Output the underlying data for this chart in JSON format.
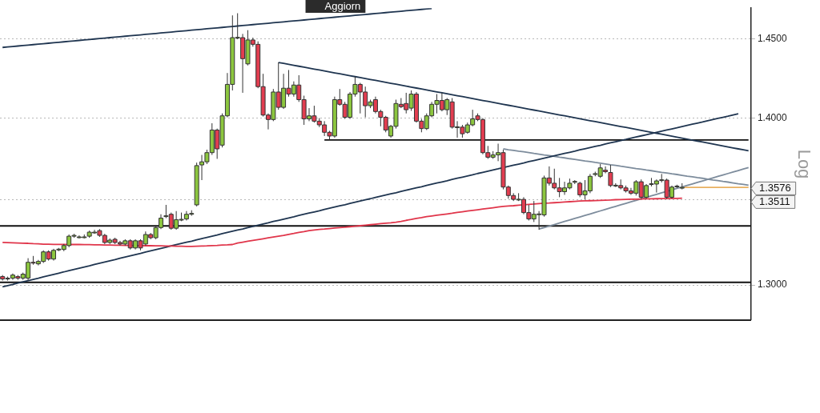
{
  "chart_data": {
    "type": "candlestick",
    "ylabel": "Log",
    "log": true,
    "grid": "y",
    "tick_labels": "y",
    "categories": [
      null,
      null,
      null,
      null,
      null,
      null,
      null,
      null,
      null,
      null,
      null,
      null,
      null,
      null,
      null,
      null,
      null,
      null,
      null,
      null,
      null,
      null,
      null,
      null,
      null,
      null,
      null,
      null,
      null,
      null,
      null,
      null,
      null,
      null,
      null,
      null,
      null,
      null,
      null,
      null,
      null,
      null,
      null,
      null,
      null,
      null,
      null,
      null,
      null,
      null,
      null,
      null,
      null,
      null,
      null,
      null,
      null,
      null,
      null,
      null,
      null,
      null,
      null,
      null,
      null,
      null,
      null,
      null,
      null,
      null,
      null,
      null,
      null,
      null,
      null,
      null,
      null,
      null,
      null,
      null,
      null,
      null,
      null,
      null,
      null,
      null,
      null,
      null,
      null,
      null,
      null,
      null,
      null,
      null,
      null,
      null,
      null,
      null,
      null,
      null,
      null,
      null,
      null,
      null,
      null,
      null,
      null,
      null,
      null,
      null,
      null,
      null,
      null,
      null,
      null,
      null,
      null,
      null,
      null,
      null,
      null,
      null,
      null,
      null,
      null,
      null,
      null,
      null,
      null,
      null,
      null,
      null,
      null,
      null,
      null,
      null,
      null,
      null,
      null,
      null,
      null,
      null,
      null,
      null,
      null,
      null,
      null
    ],
    "ylim": [
      1.28,
      1.47
    ],
    "yticks": [
      {
        "value": 1.3,
        "label": "1.3000"
      },
      {
        "value": 1.35,
        "label": null
      },
      {
        "value": 1.4,
        "label": "1.4000"
      },
      {
        "value": 1.45,
        "label": "1.4500"
      }
    ],
    "ohlc": [
      [
        1.3049,
        1.3058,
        1.3026,
        1.3035
      ],
      [
        1.3035,
        1.3049,
        1.3026,
        1.304
      ],
      [
        1.304,
        1.3067,
        1.303,
        1.3058
      ],
      [
        1.3049,
        1.3058,
        1.303,
        1.304
      ],
      [
        1.304,
        1.3072,
        1.303,
        1.3063
      ],
      [
        1.304,
        1.3156,
        1.3026,
        1.3132
      ],
      [
        1.3132,
        1.3169,
        1.3118,
        1.3128
      ],
      [
        1.3123,
        1.3146,
        1.3114,
        1.3137
      ],
      [
        1.3137,
        1.3202,
        1.3128,
        1.3193
      ],
      [
        1.3193,
        1.3202,
        1.3142,
        1.3151
      ],
      [
        1.3151,
        1.3211,
        1.3142,
        1.3202
      ],
      [
        1.3207,
        1.3216,
        1.3197,
        1.3209
      ],
      [
        1.3207,
        1.3239,
        1.3197,
        1.323
      ],
      [
        1.323,
        1.3295,
        1.322,
        1.3285
      ],
      [
        1.3285,
        1.3299,
        1.3276,
        1.329
      ],
      [
        1.3281,
        1.329,
        1.3272,
        1.3281
      ],
      [
        1.3281,
        1.3295,
        1.3272,
        1.3281
      ],
      [
        1.3285,
        1.3318,
        1.3276,
        1.3309
      ],
      [
        1.3309,
        1.3323,
        1.3299,
        1.3309
      ],
      [
        1.3318,
        1.3327,
        1.3281,
        1.329
      ],
      [
        1.329,
        1.3299,
        1.3239,
        1.3248
      ],
      [
        1.3248,
        1.3272,
        1.3239,
        1.3262
      ],
      [
        1.3267,
        1.3276,
        1.3239,
        1.3248
      ],
      [
        1.3248,
        1.3258,
        1.323,
        1.3239
      ],
      [
        1.3239,
        1.3267,
        1.323,
        1.3258
      ],
      [
        1.3258,
        1.3267,
        1.3207,
        1.3216
      ],
      [
        1.3216,
        1.3267,
        1.3207,
        1.3258
      ],
      [
        1.3258,
        1.3267,
        1.3202,
        1.3216
      ],
      [
        1.3239,
        1.3313,
        1.323,
        1.3295
      ],
      [
        1.3295,
        1.3304,
        1.3267,
        1.3276
      ],
      [
        1.3276,
        1.335,
        1.3267,
        1.3336
      ],
      [
        1.3336,
        1.3415,
        1.3327,
        1.3392
      ],
      [
        1.3401,
        1.3471,
        1.3392,
        1.3406
      ],
      [
        1.3415,
        1.3425,
        1.3323,
        1.3332
      ],
      [
        1.3332,
        1.3434,
        1.3323,
        1.3383
      ],
      [
        1.3383,
        1.3425,
        1.3374,
        1.3385
      ],
      [
        1.3387,
        1.3434,
        1.3378,
        1.3415
      ],
      [
        1.3415,
        1.3439,
        1.3406,
        1.342
      ],
      [
        1.3471,
        1.3726,
        1.3462,
        1.3708
      ],
      [
        1.3712,
        1.3773,
        1.362,
        1.3731
      ],
      [
        1.3731,
        1.3805,
        1.3717,
        1.3787
      ],
      [
        1.3787,
        1.3968,
        1.3773,
        1.3926
      ],
      [
        1.3926,
        1.3935,
        1.3749,
        1.381
      ],
      [
        1.3833,
        1.4029,
        1.3819,
        1.4014
      ],
      [
        1.4014,
        1.4283,
        1.4005,
        1.4211
      ],
      [
        1.4211,
        1.4653,
        1.4173,
        1.4509
      ],
      [
        1.4509,
        1.4667,
        1.4499,
        1.4511
      ],
      [
        1.4509,
        1.4533,
        1.4158,
        1.4374
      ],
      [
        1.4341,
        1.4557,
        1.4331,
        1.4494
      ],
      [
        1.4494,
        1.4509,
        1.4451,
        1.4466
      ],
      [
        1.4466,
        1.4485,
        1.4187,
        1.4197
      ],
      [
        1.4197,
        1.4278,
        1.401,
        1.4019
      ],
      [
        1.4019,
        1.4029,
        1.393,
        1.3991
      ],
      [
        1.3991,
        1.4182,
        1.3981,
        1.4163
      ],
      [
        1.4163,
        1.435,
        1.4052,
        1.4067
      ],
      [
        1.4067,
        1.4278,
        1.4057,
        1.4187
      ],
      [
        1.4187,
        1.4302,
        1.4134,
        1.415
      ],
      [
        1.415,
        1.423,
        1.4134,
        1.4207
      ],
      [
        1.4207,
        1.4269,
        1.4101,
        1.4115
      ],
      [
        1.4115,
        1.414,
        1.3958,
        1.3995
      ],
      [
        1.3995,
        1.4062,
        1.3981,
        1.4014
      ],
      [
        1.4014,
        1.4077,
        1.3972,
        1.3981
      ],
      [
        1.3981,
        1.4,
        1.3944,
        1.3958
      ],
      [
        1.3958,
        1.3981,
        1.3889,
        1.3912
      ],
      [
        1.3912,
        1.3921,
        1.3865,
        1.3889
      ],
      [
        1.3889,
        1.4134,
        1.3879,
        1.4115
      ],
      [
        1.4115,
        1.4182,
        1.4077,
        1.4086
      ],
      [
        1.4086,
        1.4101,
        1.3995,
        1.4005
      ],
      [
        1.4005,
        1.4163,
        1.3995,
        1.415
      ],
      [
        1.415,
        1.426,
        1.4134,
        1.4211
      ],
      [
        1.4211,
        1.4221,
        1.4029,
        1.4163
      ],
      [
        1.4163,
        1.4197,
        1.4005,
        1.4077
      ],
      [
        1.4077,
        1.4115,
        1.4062,
        1.4101
      ],
      [
        1.4115,
        1.4134,
        1.4029,
        1.4041
      ],
      [
        1.4041,
        1.4052,
        1.3949,
        1.4005
      ],
      [
        1.4005,
        1.4014,
        1.3912,
        1.3926
      ],
      [
        1.3889,
        1.3958,
        1.3879,
        1.3949
      ],
      [
        1.3949,
        1.4115,
        1.3935,
        1.4091
      ],
      [
        1.4086,
        1.4125,
        1.4062,
        1.4071
      ],
      [
        1.4091,
        1.4158,
        1.4029,
        1.4052
      ],
      [
        1.4062,
        1.4173,
        1.4045,
        1.415
      ],
      [
        1.415,
        1.4163,
        1.3972,
        1.3981
      ],
      [
        1.3981,
        1.3995,
        1.3912,
        1.3935
      ],
      [
        1.3935,
        1.4029,
        1.3926,
        1.4014
      ],
      [
        1.4014,
        1.4101,
        1.4005,
        1.4086
      ],
      [
        1.4086,
        1.415,
        1.4029,
        1.411
      ],
      [
        1.411,
        1.4158,
        1.4042,
        1.4052
      ],
      [
        1.4052,
        1.4125,
        1.4019,
        1.4115
      ],
      [
        1.4101,
        1.4125,
        1.3935,
        1.3944
      ],
      [
        1.3944,
        1.3981,
        1.3879,
        1.3946
      ],
      [
        1.3944,
        1.3958,
        1.3879,
        1.3903
      ],
      [
        1.3912,
        1.3972,
        1.3903,
        1.3958
      ],
      [
        1.3958,
        1.4052,
        1.3949,
        1.3995
      ],
      [
        1.4014,
        1.4029,
        1.3981,
        1.3991
      ],
      [
        1.3991,
        1.4,
        1.3777,
        1.3787
      ],
      [
        1.3787,
        1.3828,
        1.3749,
        1.3759
      ],
      [
        1.3759,
        1.3796,
        1.3749,
        1.3773
      ],
      [
        1.3773,
        1.3842,
        1.3735,
        1.3787
      ],
      [
        1.3787,
        1.3805,
        1.3564,
        1.3578
      ],
      [
        1.3578,
        1.3587,
        1.3508,
        1.3527
      ],
      [
        1.3527,
        1.3541,
        1.3494,
        1.3504
      ],
      [
        1.3504,
        1.3541,
        1.3494,
        1.3505
      ],
      [
        1.3504,
        1.3517,
        1.3415,
        1.3425
      ],
      [
        1.3425,
        1.3471,
        1.3378,
        1.3387
      ],
      [
        1.3387,
        1.3494,
        1.3369,
        1.3415
      ],
      [
        1.3415,
        1.3434,
        1.3323,
        1.3417
      ],
      [
        1.3411,
        1.3647,
        1.3401,
        1.3633
      ],
      [
        1.3633,
        1.3703,
        1.3587,
        1.3601
      ],
      [
        1.3601,
        1.3689,
        1.3564,
        1.3573
      ],
      [
        1.3573,
        1.3633,
        1.3517,
        1.355
      ],
      [
        1.355,
        1.361,
        1.3531,
        1.3573
      ],
      [
        1.3573,
        1.3629,
        1.3564,
        1.3601
      ],
      [
        1.361,
        1.362,
        1.3596,
        1.3612
      ],
      [
        1.3601,
        1.361,
        1.3517,
        1.3531
      ],
      [
        1.3531,
        1.362,
        1.3504,
        1.3555
      ],
      [
        1.3555,
        1.3657,
        1.3541,
        1.3643
      ],
      [
        1.3657,
        1.3671,
        1.3643,
        1.3659
      ],
      [
        1.3643,
        1.3717,
        1.3633,
        1.3694
      ],
      [
        1.368,
        1.3703,
        1.3661,
        1.3671
      ],
      [
        1.3666,
        1.3712,
        1.3578,
        1.3587
      ],
      [
        1.3587,
        1.3601,
        1.3578,
        1.3589
      ],
      [
        1.3587,
        1.3624,
        1.3564,
        1.3573
      ],
      [
        1.3573,
        1.3587,
        1.3545,
        1.3555
      ],
      [
        1.3555,
        1.3573,
        1.3531,
        1.3541
      ],
      [
        1.3541,
        1.362,
        1.3527,
        1.361
      ],
      [
        1.361,
        1.3624,
        1.3508,
        1.3517
      ],
      [
        1.3517,
        1.3596,
        1.3508,
        1.3587
      ],
      [
        1.3596,
        1.3633,
        1.3582,
        1.3598
      ],
      [
        1.3596,
        1.3624,
        1.3545,
        1.3615
      ],
      [
        1.362,
        1.3657,
        1.3606,
        1.3622
      ],
      [
        1.362,
        1.3629,
        1.3508,
        1.3517
      ],
      [
        1.3517,
        1.3587,
        1.3508,
        1.3578
      ],
      [
        1.3582,
        1.3592,
        1.3573,
        1.3584
      ],
      [
        1.3572,
        1.3601,
        1.3564,
        1.3576
      ],
      null,
      null,
      null,
      null,
      null,
      null,
      null,
      null,
      null,
      null,
      null,
      null,
      null
    ],
    "colors": [
      "#e23d50",
      "#8cc63f",
      "#8cc63f",
      "#e23d50",
      "#8cc63f",
      "#8cc63f",
      "#e23d50",
      "#8cc63f",
      "#8cc63f",
      "#e23d50",
      "#8cc63f",
      "#8cc63f",
      "#8cc63f",
      "#8cc63f",
      "#8cc63f",
      "#8cc63f",
      "#8cc63f",
      "#8cc63f",
      "#8cc63f",
      "#e23d50",
      "#e23d50",
      "#8cc63f",
      "#e23d50",
      "#e23d50",
      "#8cc63f",
      "#e23d50",
      "#8cc63f",
      "#e23d50",
      "#8cc63f",
      "#e23d50",
      "#8cc63f",
      "#8cc63f",
      "#8cc63f",
      "#e23d50",
      "#8cc63f",
      "#8cc63f",
      "#8cc63f",
      "#8cc63f",
      "#8cc63f",
      "#8cc63f",
      "#8cc63f",
      "#8cc63f",
      "#e23d50",
      "#8cc63f",
      "#8cc63f",
      "#8cc63f",
      "#8cc63f",
      "#e23d50",
      "#8cc63f",
      "#e23d50",
      "#e23d50",
      "#e23d50",
      "#e23d50",
      "#8cc63f",
      "#e23d50",
      "#8cc63f",
      "#e23d50",
      "#8cc63f",
      "#e23d50",
      "#e23d50",
      "#8cc63f",
      "#e23d50",
      "#e23d50",
      "#e23d50",
      "#e23d50",
      "#8cc63f",
      "#e23d50",
      "#e23d50",
      "#8cc63f",
      "#8cc63f",
      "#e23d50",
      "#e23d50",
      "#8cc63f",
      "#e23d50",
      "#e23d50",
      "#e23d50",
      "#8cc63f",
      "#8cc63f",
      "#e23d50",
      "#e23d50",
      "#8cc63f",
      "#e23d50",
      "#e23d50",
      "#8cc63f",
      "#8cc63f",
      "#8cc63f",
      "#e23d50",
      "#8cc63f",
      "#e23d50",
      "#8cc63f",
      "#e23d50",
      "#8cc63f",
      "#8cc63f",
      "#e23d50",
      "#e23d50",
      "#e23d50",
      "#8cc63f",
      "#8cc63f",
      "#e23d50",
      "#e23d50",
      "#e23d50",
      "#8cc63f",
      "#e23d50",
      "#e23d50",
      "#8cc63f",
      "#8cc63f",
      "#8cc63f",
      "#e23d50",
      "#e23d50",
      "#e23d50",
      "#8cc63f",
      "#8cc63f",
      "#8cc63f",
      "#e23d50",
      "#8cc63f",
      "#8cc63f",
      "#8cc63f",
      "#8cc63f",
      "#e23d50",
      "#e23d50",
      "#8cc63f",
      "#e23d50",
      "#e23d50",
      "#e23d50",
      "#8cc63f",
      "#e23d50",
      "#8cc63f",
      "#8cc63f",
      "#8cc63f",
      "#8cc63f",
      "#e23d50",
      "#8cc63f",
      "#8cc63f",
      "#8cc63f",
      null,
      null,
      null,
      null,
      null,
      null,
      null,
      null,
      null,
      null,
      null,
      null,
      null
    ],
    "series": [
      {
        "type": "line",
        "color": "#e0354a",
        "values": [
          1.3248,
          1.3247,
          1.3246,
          1.3245,
          1.3244,
          1.3243,
          1.3241,
          1.324,
          1.3238,
          1.3238,
          1.3237,
          1.3237,
          1.3237,
          1.3236,
          1.3236,
          1.3236,
          1.3235,
          1.3235,
          1.3234,
          1.3234,
          1.3233,
          1.3233,
          1.3232,
          1.3232,
          1.3231,
          1.3231,
          1.323,
          1.323,
          1.3229,
          1.3229,
          1.3228,
          1.3228,
          1.3227,
          1.3227,
          1.3226,
          1.3226,
          1.3225,
          1.3225,
          1.3226,
          1.3227,
          1.3228,
          1.323,
          1.3231,
          1.3233,
          1.3234,
          1.3236,
          1.3245,
          1.325,
          1.3255,
          1.326,
          1.3265,
          1.327,
          1.3275,
          1.328,
          1.3285,
          1.329,
          1.3296,
          1.3301,
          1.3307,
          1.3312,
          1.3318,
          1.3322,
          1.3325,
          1.3327,
          1.333,
          1.3333,
          1.3336,
          1.3338,
          1.3341,
          1.3344,
          1.3347,
          1.335,
          1.3353,
          1.3356,
          1.3359,
          1.3362,
          1.3364,
          1.3368,
          1.3373,
          1.3379,
          1.3384,
          1.339,
          1.3395,
          1.3401,
          1.3405,
          1.3409,
          1.3413,
          1.3417,
          1.3421,
          1.3426,
          1.343,
          1.3434,
          1.3438,
          1.3442,
          1.3446,
          1.345,
          1.3454,
          1.3458,
          1.3462,
          1.3464,
          1.3466,
          1.3469,
          1.3471,
          1.3474,
          1.3476,
          1.3479,
          1.3481,
          1.3482,
          1.3484,
          1.3486,
          1.3488,
          1.349,
          1.3492,
          1.3494,
          1.3495,
          1.3496,
          1.3497,
          1.3498,
          1.3499,
          1.35,
          1.3502,
          1.3503,
          1.3504,
          1.3505,
          1.3505,
          1.3506,
          1.3507,
          1.3507,
          1.3508,
          1.3509,
          1.3509,
          1.351,
          1.351,
          1.3511,
          null,
          null,
          null,
          null,
          null,
          null,
          null,
          null,
          null,
          null,
          null,
          null,
          null
        ]
      },
      {
        "type": "line",
        "color": "#1f3550",
        "values": [
          1.4446,
          1.4449,
          1.4452,
          1.4455,
          1.4458,
          1.4461,
          1.4464,
          1.4467,
          1.447,
          1.4473,
          1.4476,
          1.4479,
          1.4482,
          1.4485,
          1.4488,
          1.4491,
          1.4494,
          1.4497,
          1.45,
          1.4503,
          1.4506,
          1.4509,
          1.4512,
          1.4515,
          1.4518,
          1.4521,
          1.4524,
          1.4527,
          1.453,
          1.4533,
          1.4536,
          1.4539,
          1.4542,
          1.4545,
          1.4548,
          1.4551,
          1.4554,
          1.4557,
          1.456,
          1.4563,
          1.4566,
          1.4569,
          1.4572,
          1.4575,
          1.4578,
          1.4581,
          1.4584,
          1.4587,
          1.459,
          1.4593,
          1.4596,
          1.4599,
          1.4602,
          1.4605,
          1.4608,
          1.4611,
          1.4614,
          1.4617,
          1.462,
          1.4623,
          1.4626,
          1.4629,
          1.4632,
          1.4635,
          1.4638,
          1.4641,
          1.4644,
          1.4647,
          1.465,
          1.4653,
          1.4656,
          1.4659,
          1.4662,
          1.4665,
          1.4668,
          1.4671,
          1.4674,
          1.4677,
          1.468,
          1.4683,
          1.4686,
          1.4689,
          1.4692,
          1.4695,
          1.4698,
          null,
          null,
          null,
          null,
          null,
          null,
          null,
          null,
          null,
          null,
          null,
          null,
          null,
          null,
          null,
          null,
          null,
          null,
          null,
          null,
          null,
          null,
          null,
          null,
          null,
          null,
          null,
          null,
          null,
          null,
          null,
          null,
          null,
          null,
          null,
          null,
          null,
          null,
          null,
          null,
          null,
          null,
          null,
          null,
          null,
          null,
          null,
          null,
          null,
          null,
          null,
          null,
          null,
          null,
          null,
          null,
          null,
          null,
          null,
          null,
          null,
          null
        ]
      },
      {
        "type": "line",
        "color": "#1f3550",
        "values": [
          null,
          null,
          null,
          null,
          null,
          null,
          null,
          null,
          null,
          null,
          null,
          null,
          null,
          null,
          null,
          null,
          null,
          null,
          null,
          null,
          null,
          null,
          null,
          null,
          null,
          null,
          null,
          null,
          null,
          null,
          null,
          null,
          null,
          null,
          null,
          null,
          null,
          null,
          null,
          null,
          null,
          null,
          null,
          null,
          null,
          null,
          null,
          null,
          null,
          null,
          null,
          null,
          null,
          null,
          1.435,
          1.4344,
          1.4338,
          1.4332,
          1.4326,
          1.432,
          1.4314,
          1.4308,
          1.4302,
          1.4296,
          1.429,
          1.4284,
          1.4278,
          1.4272,
          1.4266,
          1.426,
          1.4254,
          1.4248,
          1.4242,
          1.4236,
          1.423,
          1.4224,
          1.4218,
          1.4212,
          1.4206,
          1.42,
          1.4194,
          1.4188,
          1.4182,
          1.4176,
          1.417,
          1.4164,
          1.4158,
          1.4152,
          1.4146,
          1.414,
          1.4134,
          1.4128,
          1.4122,
          1.4116,
          1.411,
          1.4104,
          1.4098,
          1.4092,
          1.4086,
          1.408,
          1.4074,
          1.4068,
          1.4062,
          1.4056,
          1.405,
          1.4044,
          1.4038,
          1.4032,
          1.4026,
          1.402,
          1.4014,
          1.4008,
          1.4002,
          1.3996,
          1.399,
          1.3984,
          1.3978,
          1.3972,
          1.3966,
          1.396,
          1.3954,
          1.3948,
          1.3942,
          1.3936,
          1.393,
          1.3924,
          1.3918,
          1.3912,
          1.3906,
          1.39,
          1.3894,
          1.3888,
          1.3882,
          1.3876,
          1.387,
          1.3864,
          1.3858,
          1.3852,
          1.3846,
          1.384,
          1.3834,
          1.3828,
          1.3822,
          1.3816,
          1.381,
          1.3804,
          1.3798
        ]
      },
      {
        "type": "line",
        "color": "#1f3550",
        "values": [
          1.299,
          1.2997,
          1.3004,
          1.3012,
          1.3019,
          1.3026,
          1.3033,
          1.304,
          1.3048,
          1.3055,
          1.3062,
          1.3069,
          1.3076,
          1.3084,
          1.3091,
          1.3098,
          1.3105,
          1.3112,
          1.312,
          1.3127,
          1.3134,
          1.3141,
          1.3148,
          1.3156,
          1.3163,
          1.317,
          1.3177,
          1.3184,
          1.3192,
          1.3199,
          1.3206,
          1.3213,
          1.322,
          1.3228,
          1.3235,
          1.3242,
          1.3249,
          1.3256,
          1.3264,
          1.3271,
          1.3278,
          1.3285,
          1.3292,
          1.33,
          1.3307,
          1.3314,
          1.3321,
          1.3328,
          1.3336,
          1.3343,
          1.335,
          1.3357,
          1.3364,
          1.3372,
          1.3379,
          1.3386,
          1.3393,
          1.34,
          1.3408,
          1.3415,
          1.3422,
          1.3429,
          1.3436,
          1.3444,
          1.3451,
          1.3458,
          1.3465,
          1.3472,
          1.348,
          1.3487,
          1.3494,
          1.3501,
          1.3508,
          1.3516,
          1.3523,
          1.353,
          1.3537,
          1.3544,
          1.3552,
          1.3559,
          1.3566,
          1.3573,
          1.358,
          1.3588,
          1.3595,
          1.3602,
          1.3609,
          1.3616,
          1.3624,
          1.3631,
          1.3638,
          1.3645,
          1.3652,
          1.366,
          1.3667,
          1.3674,
          1.3681,
          1.3688,
          1.3696,
          1.3703,
          1.371,
          1.3717,
          1.3724,
          1.3732,
          1.3739,
          1.3746,
          1.3753,
          1.376,
          1.3768,
          1.3775,
          1.3782,
          1.3789,
          1.3796,
          1.3804,
          1.3811,
          1.3818,
          1.3825,
          1.3832,
          1.384,
          1.3847,
          1.3854,
          1.3861,
          1.3868,
          1.3876,
          1.3883,
          1.389,
          1.3897,
          1.3904,
          1.3912,
          1.3919,
          1.3926,
          1.3933,
          1.394,
          1.3948,
          1.3955,
          1.3962,
          1.3969,
          1.3976,
          1.3984,
          1.3991,
          1.3998,
          1.4005,
          1.4012,
          1.402,
          1.4027,
          null,
          null
        ]
      },
      {
        "type": "line",
        "color": "#111111",
        "values": [
          null,
          null,
          null,
          null,
          null,
          null,
          null,
          null,
          null,
          null,
          null,
          null,
          null,
          null,
          null,
          null,
          null,
          null,
          null,
          null,
          null,
          null,
          null,
          null,
          null,
          null,
          null,
          null,
          null,
          null,
          null,
          null,
          null,
          null,
          null,
          null,
          null,
          null,
          null,
          null,
          null,
          null,
          null,
          null,
          null,
          null,
          null,
          null,
          null,
          null,
          null,
          null,
          null,
          null,
          null,
          null,
          null,
          null,
          null,
          null,
          null,
          null,
          null,
          1.3865,
          1.3865,
          1.3865,
          1.3865,
          1.3865,
          1.3865,
          1.3865,
          1.3865,
          1.3865,
          1.3865,
          1.3865,
          1.3865,
          1.3865,
          1.3865,
          1.3865,
          1.3865,
          1.3865,
          1.3865,
          1.3865,
          1.3865,
          1.3865,
          1.3865,
          1.3865,
          1.3865,
          1.3865,
          1.3865,
          1.3865,
          1.3865,
          1.3865,
          1.3865,
          1.3865,
          1.3865,
          1.3865,
          1.3865,
          1.3865,
          1.3865,
          1.3865,
          1.3865,
          1.3865,
          1.3865,
          1.3865,
          1.3865,
          1.3865,
          1.3865,
          1.3865,
          1.3865,
          1.3865,
          1.3865,
          1.3865,
          1.3865,
          1.3865,
          1.3865,
          1.3865,
          1.3865,
          1.3865,
          1.3865,
          1.3865,
          1.3865,
          1.3865,
          1.3865,
          1.3865,
          1.3865,
          1.3865,
          1.3865,
          1.3865,
          1.3865,
          1.3865,
          1.3865,
          1.3865,
          1.3865,
          1.3865,
          1.3865,
          1.3865,
          1.3865,
          1.3865,
          1.3865,
          1.3865,
          1.3865,
          1.3865,
          1.3865,
          1.3865,
          1.3865,
          1.3865,
          1.3865
        ]
      },
      {
        "type": "line",
        "color": "#7d8c9c",
        "values": [
          null,
          null,
          null,
          null,
          null,
          null,
          null,
          null,
          null,
          null,
          null,
          null,
          null,
          null,
          null,
          null,
          null,
          null,
          null,
          null,
          null,
          null,
          null,
          null,
          null,
          null,
          null,
          null,
          null,
          null,
          null,
          null,
          null,
          null,
          null,
          null,
          null,
          null,
          null,
          null,
          null,
          null,
          null,
          null,
          null,
          null,
          null,
          null,
          null,
          null,
          null,
          null,
          null,
          null,
          null,
          null,
          null,
          null,
          null,
          null,
          null,
          null,
          null,
          null,
          null,
          null,
          null,
          null,
          null,
          null,
          null,
          null,
          null,
          null,
          null,
          null,
          null,
          null,
          null,
          null,
          null,
          null,
          null,
          null,
          null,
          null,
          null,
          null,
          null,
          null,
          null,
          null,
          null,
          null,
          null,
          null,
          null,
          null,
          1.381,
          1.3805,
          1.3801,
          1.3796,
          1.3792,
          1.3787,
          1.3782,
          1.3778,
          1.3773,
          1.3769,
          1.3764,
          1.3759,
          1.3755,
          1.375,
          1.3746,
          1.3741,
          1.3736,
          1.3732,
          1.3727,
          1.3723,
          1.3718,
          1.3713,
          1.3709,
          1.3704,
          1.37,
          1.3695,
          1.369,
          1.3686,
          1.3681,
          1.3677,
          1.3672,
          1.3667,
          1.3663,
          1.3658,
          1.3654,
          1.3649,
          1.3644,
          1.364,
          1.3635,
          1.3631,
          1.3626,
          1.3621,
          1.3617,
          1.3612,
          1.3608,
          1.3603,
          1.3598,
          1.3594,
          1.3589
        ]
      },
      {
        "type": "line",
        "color": "#7d8c9c",
        "values": [
          null,
          null,
          null,
          null,
          null,
          null,
          null,
          null,
          null,
          null,
          null,
          null,
          null,
          null,
          null,
          null,
          null,
          null,
          null,
          null,
          null,
          null,
          null,
          null,
          null,
          null,
          null,
          null,
          null,
          null,
          null,
          null,
          null,
          null,
          null,
          null,
          null,
          null,
          null,
          null,
          null,
          null,
          null,
          null,
          null,
          null,
          null,
          null,
          null,
          null,
          null,
          null,
          null,
          null,
          null,
          null,
          null,
          null,
          null,
          null,
          null,
          null,
          null,
          null,
          null,
          null,
          null,
          null,
          null,
          null,
          null,
          null,
          null,
          null,
          null,
          null,
          null,
          null,
          null,
          null,
          null,
          null,
          null,
          null,
          null,
          null,
          null,
          null,
          null,
          null,
          null,
          null,
          null,
          null,
          null,
          null,
          null,
          null,
          null,
          null,
          null,
          null,
          null,
          null,
          null,
          1.3327,
          1.3336,
          1.3345,
          1.3354,
          1.3363,
          1.3372,
          1.3381,
          1.339,
          1.3399,
          1.3408,
          1.3417,
          1.3426,
          1.3435,
          1.3444,
          1.3453,
          1.3462,
          1.3471,
          1.348,
          1.3489,
          1.3498,
          1.3507,
          1.3516,
          1.3525,
          1.3534,
          1.3543,
          1.3552,
          1.3561,
          1.357,
          1.3579,
          1.3588,
          1.3597,
          1.3606,
          1.3615,
          1.3624,
          1.3633,
          1.3642,
          1.3651,
          1.366,
          1.3669,
          1.3678,
          1.3687,
          1.3696
        ]
      },
      {
        "type": "line",
        "color": "#e8b060",
        "values": [
          null,
          null,
          null,
          null,
          null,
          null,
          null,
          null,
          null,
          null,
          null,
          null,
          null,
          null,
          null,
          null,
          null,
          null,
          null,
          null,
          null,
          null,
          null,
          null,
          null,
          null,
          null,
          null,
          null,
          null,
          null,
          null,
          null,
          null,
          null,
          null,
          null,
          null,
          null,
          null,
          null,
          null,
          null,
          null,
          null,
          null,
          null,
          null,
          null,
          null,
          null,
          null,
          null,
          null,
          null,
          null,
          null,
          null,
          null,
          null,
          null,
          null,
          null,
          null,
          null,
          null,
          null,
          null,
          null,
          null,
          null,
          null,
          null,
          null,
          null,
          null,
          null,
          null,
          null,
          null,
          null,
          null,
          null,
          null,
          null,
          null,
          null,
          null,
          null,
          null,
          null,
          null,
          null,
          null,
          null,
          null,
          null,
          null,
          null,
          null,
          null,
          null,
          null,
          null,
          null,
          null,
          null,
          null,
          null,
          null,
          null,
          null,
          null,
          null,
          null,
          null,
          null,
          null,
          null,
          null,
          null,
          null,
          null,
          null,
          null,
          null,
          null,
          null,
          null,
          null,
          null,
          null,
          null,
          1.3576,
          1.3576,
          1.3576,
          1.3576,
          1.3576,
          1.3576,
          1.3576,
          1.3576,
          1.3576,
          1.3576,
          1.3576,
          1.3576,
          1.3576,
          1.3576
        ]
      }
    ],
    "ref_lines": [
      {
        "axis": "y",
        "value": 1.3346,
        "color": "#111111"
      },
      {
        "axis": "y",
        "value": 1.3016,
        "color": "#111111"
      }
    ],
    "annotations": [
      "Aggiorn",
      "1.3576",
      "1.3511"
    ]
  }
}
